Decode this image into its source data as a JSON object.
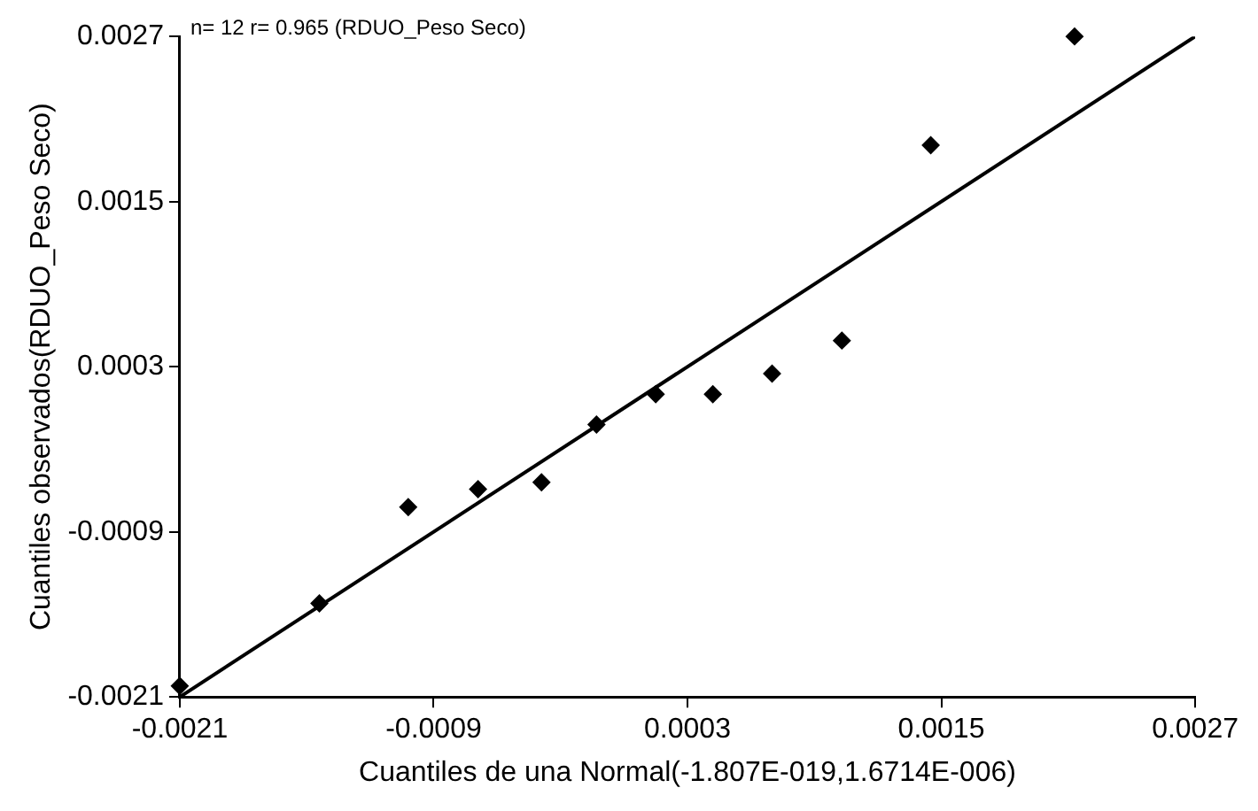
{
  "chart_data": {
    "type": "scatter",
    "xlabel": "Cuantiles de una Normal(-1.807E-019,1.6714E-006)",
    "ylabel": "Cuantiles observados(RDUO_Peso Seco)",
    "annotations": [
      "n= 12 r= 0.965 (RDUO_Peso Seco)"
    ],
    "xlim": [
      -0.0021,
      0.0027
    ],
    "xticks": [
      -0.0021,
      -0.0009,
      0.0003,
      0.0015,
      0.0027
    ],
    "ylim": [
      -0.0021,
      0.0027
    ],
    "yticks": [
      -0.0021,
      -0.0009,
      0.0003,
      0.0015,
      0.0027
    ],
    "grid": false,
    "legend": false,
    "marker": "diamond",
    "series": [
      {
        "color": "#000000",
        "x": [
          -0.0021,
          -0.00144,
          -0.00102,
          -0.00069,
          -0.00039,
          -0.00013,
          0.00015,
          0.00042,
          0.0007,
          0.00103,
          0.00145,
          0.00213
        ],
        "values": [
          -0.00202,
          -0.00142,
          -0.00072,
          -0.00059,
          -0.00054,
          -0.00012,
          0.0001,
          0.0001,
          0.00025,
          0.00049,
          0.00191,
          0.0027
        ]
      },
      {
        "type": "line",
        "marker": "none",
        "color": "#000000",
        "x": [
          -0.0021,
          0.0027
        ],
        "values": [
          -0.0021,
          0.0027
        ]
      }
    ]
  }
}
